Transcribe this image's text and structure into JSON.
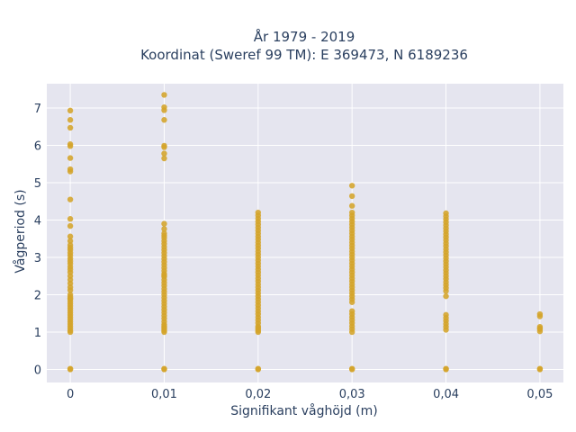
{
  "chart_data": {
    "type": "scatter",
    "title": "År 1979 - 2019",
    "subtitle": "Koordinat (Sweref 99 TM): E 369473, N 6189236",
    "xlabel": "Signifikant våghöjd (m)",
    "ylabel": "Vågperiod (s)",
    "xlim": [
      -0.0025,
      0.0525
    ],
    "ylim": [
      -0.35,
      7.65
    ],
    "x_ticks": [
      0,
      0.01,
      0.02,
      0.03,
      0.04,
      0.05
    ],
    "x_tick_labels": [
      "0",
      "0,01",
      "0,02",
      "0,03",
      "0,04",
      "0,05"
    ],
    "y_ticks": [
      0,
      1,
      2,
      3,
      4,
      5,
      6,
      7
    ],
    "y_tick_labels": [
      "0",
      "1",
      "2",
      "3",
      "4",
      "5",
      "6",
      "7"
    ],
    "grid": true,
    "colors": {
      "plot_bg": "#e5e5ef",
      "grid": "#ffffff",
      "marker": "#d4a42a"
    },
    "series": [
      {
        "x": [
          0,
          0,
          0,
          0,
          0,
          0,
          0,
          0,
          0,
          0,
          0,
          0,
          0,
          0,
          0,
          0,
          0,
          0,
          0,
          0,
          0,
          0,
          0,
          0,
          0,
          0,
          0,
          0,
          0,
          0,
          0,
          0,
          0,
          0,
          0,
          0,
          0,
          0,
          0,
          0,
          0,
          0,
          0,
          0,
          0,
          0,
          0,
          0,
          0,
          0
        ],
        "y": [
          0,
          6.93,
          6.68,
          6.47,
          6.03,
          5.98,
          5.66,
          5.36,
          5.3,
          4.55,
          4.03,
          3.84,
          3.56,
          3.44,
          3.33,
          3.26,
          3.2,
          3.12,
          3.05,
          2.97,
          2.9,
          2.83,
          2.75,
          2.68,
          2.6,
          2.5,
          2.4,
          2.3,
          2.2,
          2.12,
          2.0,
          1.94,
          1.88,
          1.82,
          1.76,
          1.7,
          1.64,
          1.58,
          1.52,
          1.46,
          1.4,
          1.34,
          1.28,
          1.22,
          1.16,
          1.1,
          1.04,
          1.0,
          0.02,
          1.9
        ]
      },
      {
        "x": [
          0.01,
          0.01,
          0.01,
          0.01,
          0.01,
          0.01,
          0.01,
          0.01,
          0.01,
          0.01,
          0.01,
          0.01,
          0.01,
          0.01,
          0.01,
          0.01,
          0.01,
          0.01,
          0.01,
          0.01,
          0.01,
          0.01,
          0.01,
          0.01,
          0.01,
          0.01,
          0.01,
          0.01,
          0.01,
          0.01,
          0.01,
          0.01,
          0.01,
          0.01,
          0.01,
          0.01,
          0.01,
          0.01,
          0.01,
          0.01,
          0.01,
          0.01,
          0.01,
          0.01,
          0.01,
          0.01,
          0.01,
          0.01,
          0.01,
          0.01
        ],
        "y": [
          0,
          7.35,
          7.02,
          6.94,
          6.68,
          5.99,
          5.95,
          5.78,
          5.65,
          3.9,
          3.76,
          3.64,
          3.52,
          3.44,
          3.36,
          3.28,
          3.2,
          3.12,
          3.04,
          2.96,
          2.88,
          2.8,
          2.72,
          2.64,
          2.56,
          2.48,
          2.4,
          2.32,
          2.24,
          2.16,
          2.08,
          2.0,
          1.92,
          1.84,
          1.76,
          1.68,
          1.6,
          1.52,
          1.44,
          1.36,
          1.28,
          1.2,
          1.12,
          1.04,
          1.0,
          1.08,
          1.16,
          0.02,
          3.58,
          2.52
        ]
      },
      {
        "x": [
          0.02,
          0.02,
          0.02,
          0.02,
          0.02,
          0.02,
          0.02,
          0.02,
          0.02,
          0.02,
          0.02,
          0.02,
          0.02,
          0.02,
          0.02,
          0.02,
          0.02,
          0.02,
          0.02,
          0.02,
          0.02,
          0.02,
          0.02,
          0.02,
          0.02,
          0.02,
          0.02,
          0.02,
          0.02,
          0.02,
          0.02,
          0.02,
          0.02,
          0.02,
          0.02,
          0.02,
          0.02,
          0.02,
          0.02,
          0.02,
          0.02,
          0.02,
          0.02,
          0.02,
          0.02
        ],
        "y": [
          0,
          4.2,
          4.12,
          4.04,
          3.96,
          3.88,
          3.8,
          3.72,
          3.64,
          3.56,
          3.48,
          3.4,
          3.32,
          3.24,
          3.16,
          3.08,
          3.0,
          2.92,
          2.84,
          2.76,
          2.68,
          2.6,
          2.52,
          2.44,
          2.36,
          2.28,
          2.2,
          2.12,
          2.04,
          1.96,
          1.88,
          1.8,
          1.72,
          1.64,
          1.56,
          1.48,
          1.4,
          1.32,
          1.24,
          1.16,
          1.08,
          1.0,
          1.04,
          0.02,
          1.12
        ]
      },
      {
        "x": [
          0.03,
          0.03,
          0.03,
          0.03,
          0.03,
          0.03,
          0.03,
          0.03,
          0.03,
          0.03,
          0.03,
          0.03,
          0.03,
          0.03,
          0.03,
          0.03,
          0.03,
          0.03,
          0.03,
          0.03,
          0.03,
          0.03,
          0.03,
          0.03,
          0.03,
          0.03,
          0.03,
          0.03,
          0.03,
          0.03,
          0.03,
          0.03,
          0.03,
          0.03,
          0.03,
          0.03,
          0.03,
          0.03,
          0.03,
          0.03,
          0.03,
          0.03,
          0.03,
          0.03
        ],
        "y": [
          0,
          4.92,
          4.64,
          4.38,
          4.2,
          4.12,
          4.04,
          3.96,
          3.88,
          3.8,
          3.72,
          3.64,
          3.56,
          3.48,
          3.4,
          3.32,
          3.24,
          3.16,
          3.08,
          3.0,
          2.92,
          2.84,
          2.76,
          2.68,
          2.6,
          2.52,
          2.44,
          2.36,
          2.28,
          2.2,
          2.12,
          2.04,
          1.96,
          1.88,
          1.8,
          1.56,
          1.48,
          1.4,
          1.32,
          1.24,
          1.16,
          1.08,
          1.0,
          0.02
        ]
      },
      {
        "x": [
          0.04,
          0.04,
          0.04,
          0.04,
          0.04,
          0.04,
          0.04,
          0.04,
          0.04,
          0.04,
          0.04,
          0.04,
          0.04,
          0.04,
          0.04,
          0.04,
          0.04,
          0.04,
          0.04,
          0.04,
          0.04,
          0.04,
          0.04,
          0.04,
          0.04,
          0.04,
          0.04,
          0.04,
          0.04,
          0.04,
          0.04,
          0.04,
          0.04,
          0.04,
          0.04,
          0.04
        ],
        "y": [
          0,
          4.18,
          4.1,
          4.02,
          3.94,
          3.86,
          3.78,
          3.7,
          3.62,
          3.54,
          3.46,
          3.38,
          3.3,
          3.22,
          3.14,
          3.06,
          2.98,
          2.9,
          2.82,
          2.74,
          2.66,
          2.58,
          2.5,
          2.42,
          2.34,
          2.26,
          2.18,
          2.1,
          1.96,
          1.46,
          1.38,
          1.3,
          1.22,
          1.14,
          1.06,
          0.02
        ]
      },
      {
        "x": [
          0.05,
          0.05,
          0.05,
          0.05,
          0.05,
          0.05,
          0.05,
          0.05
        ],
        "y": [
          0,
          1.48,
          1.42,
          1.14,
          1.08,
          1.02,
          0.02,
          1.1
        ]
      }
    ]
  }
}
